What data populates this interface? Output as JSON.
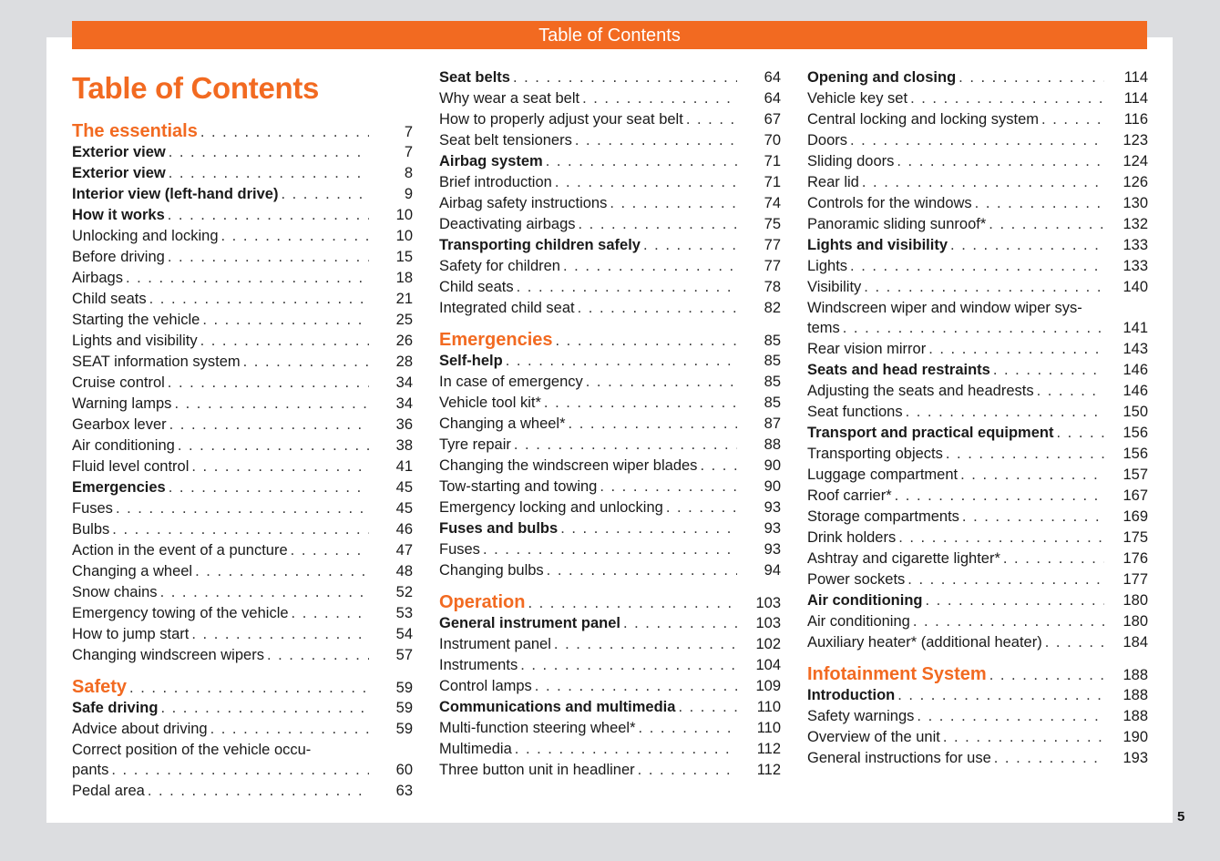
{
  "header": {
    "banner": "Table of Contents",
    "title": "Table of Contents",
    "page_number": "5",
    "accent": "#f26a21"
  },
  "columns": [
    [
      {
        "t": "chapter",
        "label": "The essentials",
        "page": "7"
      },
      {
        "t": "bold",
        "label": "Exterior view",
        "page": "7"
      },
      {
        "t": "bold",
        "label": "Exterior view",
        "page": "8"
      },
      {
        "t": "bold",
        "label": "Interior view (left-hand drive)",
        "page": "9"
      },
      {
        "t": "bold",
        "label": "How it works",
        "page": "10"
      },
      {
        "t": "normal",
        "label": "Unlocking and locking",
        "page": "10"
      },
      {
        "t": "normal",
        "label": "Before driving",
        "page": "15"
      },
      {
        "t": "normal",
        "label": "Airbags",
        "page": "18"
      },
      {
        "t": "normal",
        "label": "Child seats",
        "page": "21"
      },
      {
        "t": "normal",
        "label": "Starting the vehicle",
        "page": "25"
      },
      {
        "t": "normal",
        "label": "Lights and visibility",
        "page": "26"
      },
      {
        "t": "normal",
        "label": "SEAT information system",
        "page": "28"
      },
      {
        "t": "normal",
        "label": "Cruise control",
        "page": "34"
      },
      {
        "t": "normal",
        "label": "Warning lamps",
        "page": "34"
      },
      {
        "t": "normal",
        "label": "Gearbox lever",
        "page": "36"
      },
      {
        "t": "normal",
        "label": "Air conditioning",
        "page": "38"
      },
      {
        "t": "normal",
        "label": "Fluid level control",
        "page": "41"
      },
      {
        "t": "bold",
        "label": "Emergencies",
        "page": "45"
      },
      {
        "t": "normal",
        "label": "Fuses",
        "page": "45"
      },
      {
        "t": "normal",
        "label": "Bulbs",
        "page": "46"
      },
      {
        "t": "normal",
        "label": "Action in the event of a puncture",
        "page": "47"
      },
      {
        "t": "normal",
        "label": "Changing a wheel",
        "page": "48"
      },
      {
        "t": "normal",
        "label": "Snow chains",
        "page": "52"
      },
      {
        "t": "normal",
        "label": "Emergency towing of the vehicle",
        "page": "53"
      },
      {
        "t": "normal",
        "label": "How to jump start",
        "page": "54"
      },
      {
        "t": "normal",
        "label": "Changing windscreen wipers",
        "page": "57"
      },
      {
        "t": "chapter",
        "label": "Safety",
        "page": "59"
      },
      {
        "t": "bold",
        "label": "Safe driving",
        "page": "59"
      },
      {
        "t": "normal",
        "label": "Advice about driving",
        "page": "59"
      },
      {
        "t": "wrap",
        "label1": "Correct position of the vehicle occu-",
        "label": "pants",
        "page": "60"
      },
      {
        "t": "normal",
        "label": "Pedal area",
        "page": "63"
      }
    ],
    [
      {
        "t": "bold",
        "label": "Seat belts",
        "page": "64"
      },
      {
        "t": "normal",
        "label": "Why wear a seat belt",
        "page": "64"
      },
      {
        "t": "normal",
        "label": "How to properly adjust your seat belt",
        "page": "67"
      },
      {
        "t": "normal",
        "label": "Seat belt tensioners",
        "page": "70"
      },
      {
        "t": "bold",
        "label": "Airbag system",
        "page": "71"
      },
      {
        "t": "normal",
        "label": "Brief introduction",
        "page": "71"
      },
      {
        "t": "normal",
        "label": "Airbag safety instructions",
        "page": "74"
      },
      {
        "t": "normal",
        "label": "Deactivating airbags",
        "page": "75"
      },
      {
        "t": "bold",
        "label": "Transporting children safely",
        "page": "77"
      },
      {
        "t": "normal",
        "label": "Safety for children",
        "page": "77"
      },
      {
        "t": "normal",
        "label": "Child seats",
        "page": "78"
      },
      {
        "t": "normal",
        "label": "Integrated child seat",
        "page": "82"
      },
      {
        "t": "chapter",
        "label": "Emergencies",
        "page": "85"
      },
      {
        "t": "bold",
        "label": "Self-help",
        "page": "85"
      },
      {
        "t": "normal",
        "label": "In case of emergency",
        "page": "85"
      },
      {
        "t": "normal",
        "label": "Vehicle tool kit*",
        "page": "85"
      },
      {
        "t": "normal",
        "label": "Changing a wheel*",
        "page": "87"
      },
      {
        "t": "normal",
        "label": "Tyre repair",
        "page": "88"
      },
      {
        "t": "normal",
        "label": "Changing the windscreen wiper blades",
        "page": "90"
      },
      {
        "t": "normal",
        "label": "Tow-starting and towing",
        "page": "90"
      },
      {
        "t": "normal",
        "label": "Emergency locking and unlocking",
        "page": "93"
      },
      {
        "t": "bold",
        "label": "Fuses and bulbs",
        "page": "93"
      },
      {
        "t": "normal",
        "label": "Fuses",
        "page": "93"
      },
      {
        "t": "normal",
        "label": "Changing bulbs",
        "page": "94"
      },
      {
        "t": "chapter",
        "label": "Operation",
        "page": "103"
      },
      {
        "t": "bold",
        "label": "General instrument panel",
        "page": "103"
      },
      {
        "t": "normal",
        "label": "Instrument panel",
        "page": "102"
      },
      {
        "t": "normal",
        "label": "Instruments",
        "page": "104"
      },
      {
        "t": "normal",
        "label": "Control lamps",
        "page": "109"
      },
      {
        "t": "bold",
        "label": "Communications and multimedia",
        "page": "110"
      },
      {
        "t": "normal",
        "label": "Multi-function steering wheel*",
        "page": "110"
      },
      {
        "t": "normal",
        "label": "Multimedia",
        "page": "112"
      },
      {
        "t": "normal",
        "label": "Three button unit in headliner",
        "page": "112"
      }
    ],
    [
      {
        "t": "bold",
        "label": "Opening and closing",
        "page": "114"
      },
      {
        "t": "normal",
        "label": "Vehicle key set",
        "page": "114"
      },
      {
        "t": "normal",
        "label": "Central locking and locking system",
        "page": "116"
      },
      {
        "t": "normal",
        "label": "Doors",
        "page": "123"
      },
      {
        "t": "normal",
        "label": "Sliding doors",
        "page": "124"
      },
      {
        "t": "normal",
        "label": "Rear lid",
        "page": "126"
      },
      {
        "t": "normal",
        "label": "Controls for the windows",
        "page": "130"
      },
      {
        "t": "normal",
        "label": "Panoramic sliding sunroof*",
        "page": "132"
      },
      {
        "t": "bold",
        "label": "Lights and visibility",
        "page": "133"
      },
      {
        "t": "normal",
        "label": "Lights",
        "page": "133"
      },
      {
        "t": "normal",
        "label": "Visibility",
        "page": "140"
      },
      {
        "t": "wrap",
        "label1": "Windscreen wiper and window wiper sys-",
        "label": "tems",
        "page": "141"
      },
      {
        "t": "normal",
        "label": "Rear vision mirror",
        "page": "143"
      },
      {
        "t": "bold",
        "label": "Seats and head restraints",
        "page": "146"
      },
      {
        "t": "normal",
        "label": "Adjusting the seats and headrests",
        "page": "146"
      },
      {
        "t": "normal",
        "label": "Seat functions",
        "page": "150"
      },
      {
        "t": "bold",
        "label": "Transport and practical equipment",
        "page": "156"
      },
      {
        "t": "normal",
        "label": "Transporting objects",
        "page": "156"
      },
      {
        "t": "normal",
        "label": "Luggage compartment",
        "page": "157"
      },
      {
        "t": "normal",
        "label": "Roof carrier*",
        "page": "167"
      },
      {
        "t": "normal",
        "label": "Storage compartments",
        "page": "169"
      },
      {
        "t": "normal",
        "label": "Drink holders",
        "page": "175"
      },
      {
        "t": "normal",
        "label": "Ashtray and cigarette lighter*",
        "page": "176"
      },
      {
        "t": "normal",
        "label": "Power sockets",
        "page": "177"
      },
      {
        "t": "bold",
        "label": "Air conditioning",
        "page": "180"
      },
      {
        "t": "normal",
        "label": "Air conditioning",
        "page": "180"
      },
      {
        "t": "normal",
        "label": "Auxiliary heater* (additional heater)",
        "page": "184"
      },
      {
        "t": "chapter",
        "label": "Infotainment System",
        "page": "188"
      },
      {
        "t": "bold",
        "label": "Introduction",
        "page": "188"
      },
      {
        "t": "normal",
        "label": "Safety warnings",
        "page": "188"
      },
      {
        "t": "normal",
        "label": "Overview of the unit",
        "page": "190"
      },
      {
        "t": "normal",
        "label": "General instructions for use",
        "page": "193"
      }
    ]
  ]
}
